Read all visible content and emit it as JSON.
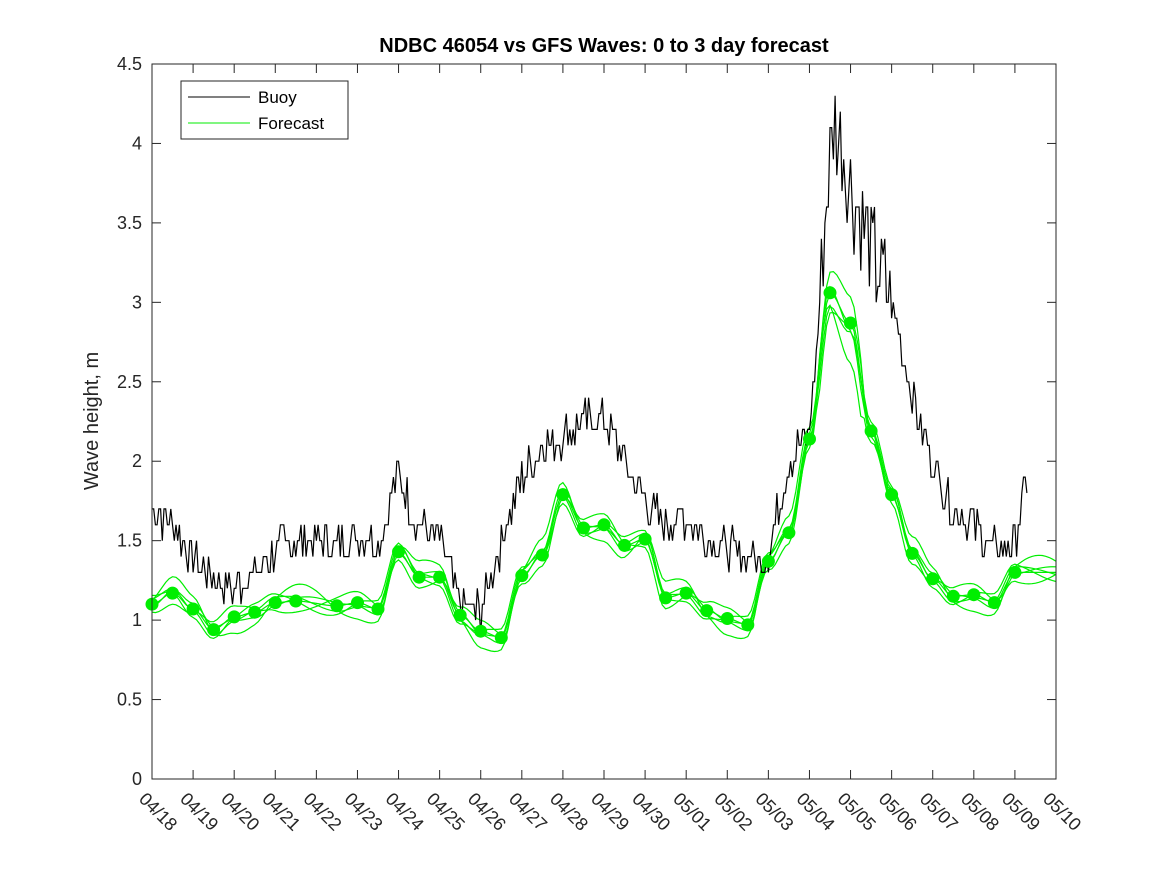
{
  "chart_data": {
    "type": "line",
    "title": "NDBC 46054 vs GFS Waves: 0 to 3 day forecast",
    "xlabel": "",
    "ylabel": "Wave height, m",
    "x_tick_labels": [
      "04/18",
      "04/19",
      "04/20",
      "04/21",
      "04/22",
      "04/23",
      "04/24",
      "04/25",
      "04/26",
      "04/27",
      "04/28",
      "04/29",
      "04/30",
      "05/01",
      "05/02",
      "05/03",
      "05/04",
      "05/05",
      "05/06",
      "05/07",
      "05/08",
      "05/09",
      "05/10"
    ],
    "y_ticks": [
      0,
      0.5,
      1,
      1.5,
      2,
      2.5,
      3,
      3.5,
      4,
      4.5
    ],
    "y_tick_labels": [
      "0",
      "0.5",
      "1",
      "1.5",
      "2",
      "2.5",
      "3",
      "3.5",
      "4",
      "4.5"
    ],
    "xlim_days": [
      0,
      22
    ],
    "ylim": [
      0,
      4.5
    ],
    "grid": false,
    "legend": {
      "location": "top-left",
      "entries": [
        "Buoy",
        "Forecast"
      ]
    },
    "colors": {
      "buoy": "#000000",
      "forecast": "#00ee00"
    },
    "series": [
      {
        "name": "Buoy",
        "x_unit": "days since 04/18",
        "x": [
          0,
          0.5,
          1,
          1.5,
          2,
          2.5,
          3,
          3.5,
          4,
          4.5,
          5,
          5.5,
          6,
          6.5,
          7,
          7.5,
          8,
          8.5,
          9,
          9.5,
          10,
          10.5,
          11,
          11.5,
          12,
          12.5,
          13,
          13.5,
          14,
          14.5,
          15,
          15.5,
          16,
          16.2,
          16.4,
          16.6,
          16.8,
          17,
          17.2,
          17.5,
          18,
          18.5,
          19,
          19.5,
          20,
          20.5,
          21,
          21.3
        ],
        "y": [
          1.7,
          1.6,
          1.4,
          1.25,
          1.2,
          1.3,
          1.45,
          1.5,
          1.5,
          1.5,
          1.55,
          1.5,
          1.9,
          1.6,
          1.5,
          1.1,
          1.05,
          1.5,
          1.9,
          2.1,
          2.15,
          2.25,
          2.25,
          2.0,
          1.75,
          1.6,
          1.65,
          1.5,
          1.45,
          1.4,
          1.4,
          2.0,
          2.2,
          2.8,
          3.6,
          4.15,
          4.0,
          3.7,
          3.6,
          3.3,
          3.0,
          2.4,
          2.0,
          1.7,
          1.6,
          1.45,
          1.5,
          1.9
        ]
      },
      {
        "name": "Forecast",
        "markers": [
          [
            0,
            1.1
          ],
          [
            0.5,
            1.17
          ],
          [
            1,
            1.07
          ],
          [
            1.5,
            0.94
          ],
          [
            2,
            1.02
          ],
          [
            2.5,
            1.05
          ],
          [
            3,
            1.11
          ],
          [
            3.5,
            1.12
          ],
          [
            4.5,
            1.09
          ],
          [
            5,
            1.11
          ],
          [
            5.5,
            1.07
          ],
          [
            6,
            1.43
          ],
          [
            6.5,
            1.27
          ],
          [
            7,
            1.27
          ],
          [
            7.5,
            1.03
          ],
          [
            8,
            0.93
          ],
          [
            8.5,
            0.89
          ],
          [
            9,
            1.28
          ],
          [
            9.5,
            1.41
          ],
          [
            10,
            1.79
          ],
          [
            10.5,
            1.58
          ],
          [
            11,
            1.6
          ],
          [
            11.5,
            1.47
          ],
          [
            12,
            1.51
          ],
          [
            12.5,
            1.14
          ],
          [
            13,
            1.17
          ],
          [
            13.5,
            1.06
          ],
          [
            14,
            1.01
          ],
          [
            14.5,
            0.97
          ],
          [
            15,
            1.37
          ],
          [
            15.5,
            1.55
          ],
          [
            16,
            2.14
          ],
          [
            16.5,
            3.06
          ],
          [
            17,
            2.87
          ],
          [
            17.5,
            2.19
          ],
          [
            18,
            1.79
          ],
          [
            18.5,
            1.42
          ],
          [
            19,
            1.26
          ],
          [
            19.5,
            1.15
          ],
          [
            20,
            1.16
          ],
          [
            20.5,
            1.11
          ],
          [
            21,
            1.3
          ]
        ],
        "ensemble_offsets": [
          0,
          0.04,
          -0.04,
          0.08,
          -0.07,
          0.12
        ]
      }
    ]
  }
}
